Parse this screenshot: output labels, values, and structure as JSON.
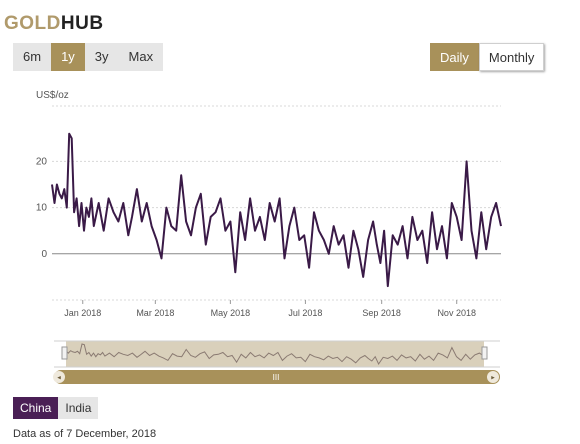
{
  "brand": {
    "gold": "GOLD",
    "hub": "HUB"
  },
  "range_buttons": [
    "6m",
    "1y",
    "3y",
    "Max"
  ],
  "range_selected": "1y",
  "frequency_buttons": [
    "Daily",
    "Monthly"
  ],
  "frequency_selected": "Daily",
  "countries": [
    "China",
    "India"
  ],
  "country_selected": "China",
  "footnote": "Data as of 7 December, 2018",
  "navigator_handle_label": "III",
  "colors": {
    "gold": "#a8915a",
    "purple": "#3a1a47",
    "selected_country": "#4a1f55",
    "navigator_fill": "#d9d0bb",
    "scrollbar": "#a8915a"
  },
  "chart_data": {
    "type": "line",
    "ylabel": "US$/oz",
    "ylim": [
      -10,
      32
    ],
    "yticks": [
      0,
      10,
      20
    ],
    "grid": true,
    "x_tick_labels": [
      "Jan 2018",
      "Mar 2018",
      "May 2018",
      "Jul 2018",
      "Sep 2018",
      "Nov 2018"
    ],
    "x_tick_dates": [
      "2018-01-01",
      "2018-03-01",
      "2018-05-01",
      "2018-07-01",
      "2018-09-01",
      "2018-11-01"
    ],
    "x_start": "2017-12-07",
    "x_end": "2018-12-07",
    "series": [
      {
        "dates": [
          "2017-12-07",
          "2017-12-09",
          "2017-12-11",
          "2017-12-13",
          "2017-12-15",
          "2017-12-17",
          "2017-12-19",
          "2017-12-21",
          "2017-12-23",
          "2017-12-25",
          "2017-12-27",
          "2017-12-29",
          "2017-12-31",
          "2018-01-02",
          "2018-01-04",
          "2018-01-06",
          "2018-01-08",
          "2018-01-10",
          "2018-01-14",
          "2018-01-18",
          "2018-01-22",
          "2018-01-26",
          "2018-01-30",
          "2018-02-03",
          "2018-02-07",
          "2018-02-10",
          "2018-02-14",
          "2018-02-18",
          "2018-02-22",
          "2018-02-26",
          "2018-03-02",
          "2018-03-06",
          "2018-03-10",
          "2018-03-14",
          "2018-03-18",
          "2018-03-22",
          "2018-03-26",
          "2018-03-30",
          "2018-04-03",
          "2018-04-07",
          "2018-04-11",
          "2018-04-15",
          "2018-04-19",
          "2018-04-23",
          "2018-04-27",
          "2018-05-01",
          "2018-05-05",
          "2018-05-09",
          "2018-05-13",
          "2018-05-17",
          "2018-05-21",
          "2018-05-25",
          "2018-05-29",
          "2018-06-02",
          "2018-06-06",
          "2018-06-10",
          "2018-06-14",
          "2018-06-18",
          "2018-06-22",
          "2018-06-26",
          "2018-06-30",
          "2018-07-04",
          "2018-07-08",
          "2018-07-12",
          "2018-07-16",
          "2018-07-20",
          "2018-07-24",
          "2018-07-28",
          "2018-08-01",
          "2018-08-05",
          "2018-08-09",
          "2018-08-13",
          "2018-08-17",
          "2018-08-21",
          "2018-08-25",
          "2018-08-28",
          "2018-08-31",
          "2018-09-03",
          "2018-09-06",
          "2018-09-10",
          "2018-09-14",
          "2018-09-18",
          "2018-09-22",
          "2018-09-26",
          "2018-09-30",
          "2018-10-04",
          "2018-10-08",
          "2018-10-12",
          "2018-10-16",
          "2018-10-20",
          "2018-10-24",
          "2018-10-28",
          "2018-11-01",
          "2018-11-05",
          "2018-11-09",
          "2018-11-13",
          "2018-11-17",
          "2018-11-21",
          "2018-11-25",
          "2018-11-29",
          "2018-12-03",
          "2018-12-07"
        ],
        "values": [
          15,
          11,
          15,
          13,
          12,
          14,
          10,
          26,
          25,
          9,
          12,
          6,
          11,
          5,
          10,
          8,
          12,
          6,
          11,
          5,
          12,
          9,
          7,
          11,
          4,
          8,
          14,
          7,
          11,
          6,
          3,
          -1,
          10,
          6,
          5,
          17,
          7,
          4,
          10,
          13,
          2,
          8,
          9,
          12,
          5,
          7,
          -4,
          9,
          3,
          12,
          5,
          8,
          3,
          11,
          7,
          12,
          -1,
          6,
          10,
          3,
          4,
          -3,
          9,
          5,
          3,
          0,
          6,
          2,
          4,
          -3,
          5,
          1,
          -5,
          3,
          7,
          2,
          -2,
          5,
          -7,
          4,
          2,
          6,
          -1,
          8,
          3,
          5,
          -2,
          9,
          1,
          6,
          -1,
          11,
          8,
          3,
          20,
          5,
          -1,
          9,
          1,
          8,
          11,
          6
        ]
      }
    ]
  }
}
